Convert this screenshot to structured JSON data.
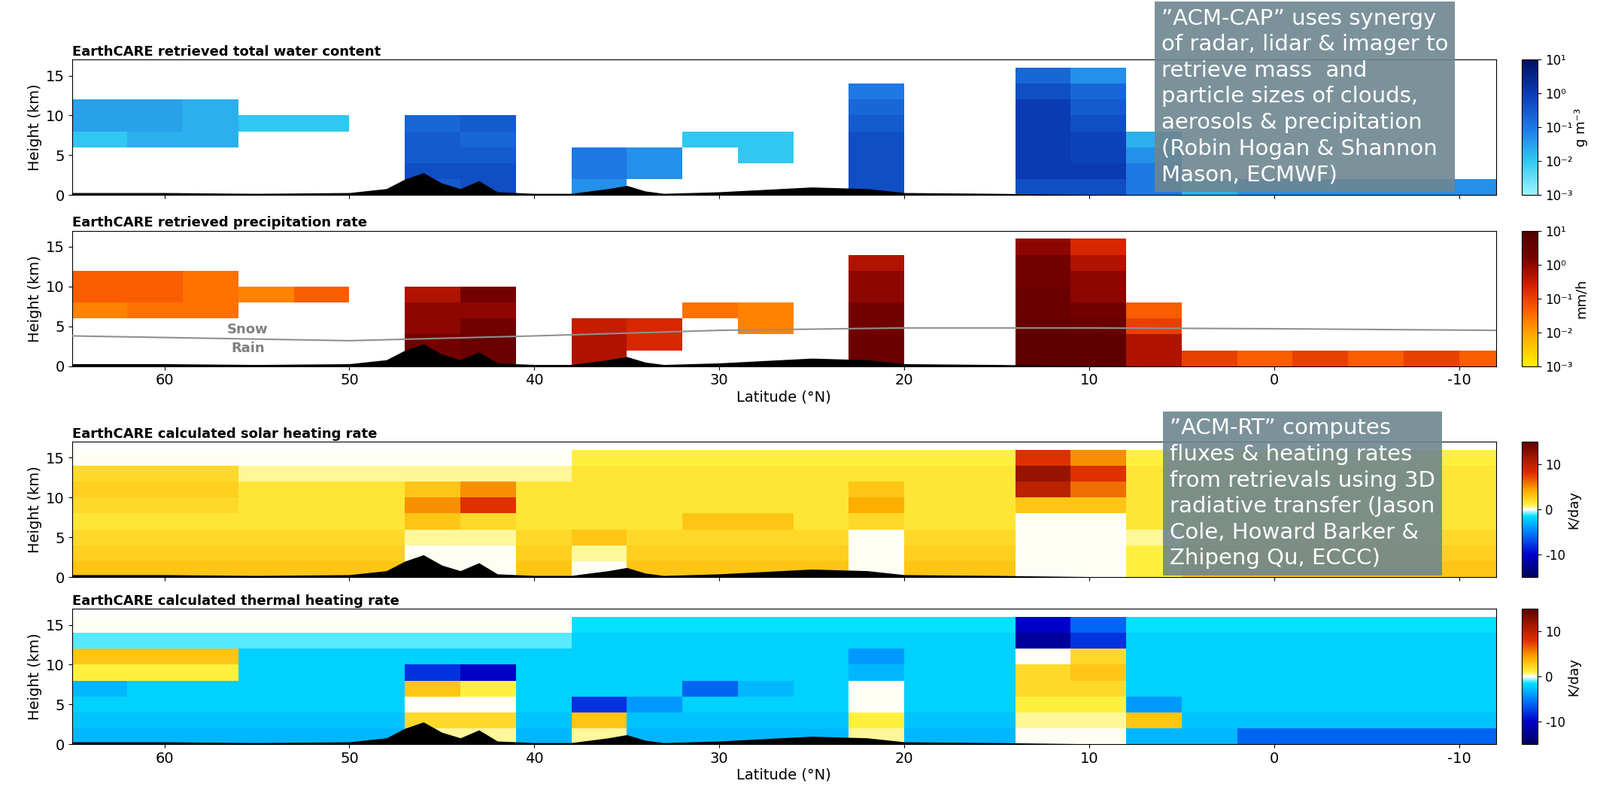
{
  "chart_data": [
    {
      "type": "heatmap",
      "title": "EarthCARE retrieved total water content",
      "ylabel": "Height (km)",
      "xlim": [
        65,
        -12
      ],
      "ylim": [
        0,
        17
      ],
      "xticks": [
        60,
        50,
        40,
        30,
        20,
        10,
        0,
        -10
      ],
      "yticks": [
        0,
        5,
        10,
        15
      ],
      "tick_labels": "y",
      "x_edges": [
        65,
        62,
        59,
        56,
        53,
        50,
        47,
        44,
        41,
        38,
        35,
        32,
        29,
        26,
        23,
        20,
        17,
        14,
        11,
        8,
        5,
        2,
        -1,
        -4,
        -7,
        -10,
        -13
      ],
      "y_edges": [
        0,
        2,
        4,
        6,
        8,
        10,
        12,
        14,
        16
      ],
      "cells": [
        [
          null,
          null,
          null,
          null,
          null,
          null,
          0.3,
          0.5,
          null,
          0.05,
          null,
          null,
          null,
          null,
          0.5,
          null,
          null,
          0.5,
          0.5,
          0.1,
          0.02,
          0.05,
          0.05,
          0.05,
          0.05,
          0.05
        ],
        [
          null,
          null,
          null,
          null,
          null,
          null,
          0.5,
          0.5,
          null,
          0.1,
          0.05,
          null,
          null,
          null,
          0.5,
          null,
          null,
          1,
          1,
          0.1,
          null,
          null,
          null,
          null,
          null,
          null
        ],
        [
          null,
          null,
          null,
          null,
          null,
          null,
          0.3,
          0.3,
          null,
          0.1,
          0.05,
          null,
          0.01,
          null,
          0.5,
          null,
          null,
          1,
          0.8,
          0.05,
          null,
          null,
          null,
          null,
          null,
          null
        ],
        [
          0.01,
          0.02,
          0.02,
          null,
          null,
          null,
          0.3,
          0.2,
          null,
          null,
          null,
          0.01,
          0.01,
          null,
          0.5,
          null,
          null,
          1,
          0.8,
          0.02,
          null,
          null,
          null,
          null,
          null,
          null
        ],
        [
          0.03,
          0.03,
          0.02,
          0.01,
          0.01,
          null,
          0.2,
          0.3,
          null,
          null,
          null,
          null,
          null,
          null,
          0.3,
          null,
          null,
          1,
          0.5,
          null,
          null,
          null,
          null,
          null,
          null,
          null
        ],
        [
          0.03,
          0.03,
          0.02,
          null,
          null,
          null,
          null,
          null,
          null,
          null,
          null,
          null,
          null,
          null,
          0.2,
          null,
          null,
          1,
          0.3,
          null,
          null,
          null,
          null,
          null,
          null,
          null
        ],
        [
          null,
          null,
          null,
          null,
          null,
          null,
          null,
          null,
          null,
          null,
          null,
          null,
          null,
          null,
          0.1,
          null,
          null,
          0.5,
          0.2,
          null,
          null,
          null,
          null,
          null,
          null,
          null
        ],
        [
          null,
          null,
          null,
          null,
          null,
          null,
          null,
          null,
          null,
          null,
          null,
          null,
          null,
          null,
          null,
          null,
          null,
          0.2,
          0.05,
          null,
          null,
          null,
          null,
          null,
          null,
          null
        ]
      ],
      "colorbar": {
        "range": [
          0.001,
          10
        ],
        "log": true,
        "label": "g m⁻³",
        "ticks": [
          {
            "value": 10,
            "label": "10¹"
          },
          {
            "value": 1,
            "label": "10⁰"
          },
          {
            "value": 0.1,
            "label": "10⁻¹"
          },
          {
            "value": 0.01,
            "label": "10⁻²"
          },
          {
            "value": 0.001,
            "label": "10⁻³"
          }
        ]
      },
      "annotation": "”ACM-CAP” uses synergy\nof radar, lidar & imager to\nretrieve mass  and\nparticle sizes of clouds,\naerosols & precipitation\n(Robin Hogan & Shannon\nMason, ECMWF)"
    },
    {
      "type": "heatmap",
      "title": "EarthCARE retrieved precipitation rate",
      "ylabel": "Height (km)",
      "xlabel": "Latitude (°N)",
      "xlim": [
        65,
        -12
      ],
      "ylim": [
        0,
        17
      ],
      "xticks": [
        60,
        50,
        40,
        30,
        20,
        10,
        0,
        -10
      ],
      "yticks": [
        0,
        5,
        10,
        15
      ],
      "x_edges": [
        65,
        62,
        59,
        56,
        53,
        50,
        47,
        44,
        41,
        38,
        35,
        32,
        29,
        26,
        23,
        20,
        17,
        14,
        11,
        8,
        5,
        2,
        -1,
        -4,
        -7,
        -10,
        -13
      ],
      "y_edges": [
        0,
        2,
        4,
        6,
        8,
        10,
        12,
        14,
        16
      ],
      "cells": [
        [
          null,
          null,
          null,
          null,
          null,
          null,
          2,
          3,
          null,
          0.5,
          null,
          null,
          null,
          null,
          3,
          null,
          null,
          5,
          5,
          0.5,
          0.1,
          0.05,
          0.1,
          0.05,
          0.1,
          0.05
        ],
        [
          null,
          null,
          null,
          null,
          null,
          null,
          2,
          3,
          null,
          0.5,
          0.2,
          null,
          null,
          null,
          3,
          null,
          null,
          5,
          5,
          0.5,
          null,
          null,
          null,
          null,
          null,
          null
        ],
        [
          null,
          null,
          null,
          null,
          null,
          null,
          1,
          2,
          null,
          0.3,
          0.2,
          null,
          0.02,
          null,
          2,
          null,
          null,
          4,
          3,
          0.1,
          null,
          null,
          null,
          null,
          null,
          null
        ],
        [
          0.02,
          0.03,
          0.03,
          null,
          null,
          null,
          1,
          1,
          null,
          null,
          null,
          0.03,
          0.02,
          null,
          2,
          null,
          null,
          3,
          2,
          0.05,
          null,
          null,
          null,
          null,
          null,
          null
        ],
        [
          0.05,
          0.05,
          0.03,
          0.02,
          0.05,
          null,
          0.5,
          2,
          null,
          null,
          null,
          null,
          null,
          null,
          1,
          null,
          null,
          3,
          1,
          null,
          null,
          null,
          null,
          null,
          null,
          null
        ],
        [
          0.05,
          0.05,
          0.03,
          null,
          null,
          null,
          null,
          null,
          null,
          null,
          null,
          null,
          null,
          null,
          1,
          null,
          null,
          2,
          1,
          null,
          null,
          null,
          null,
          null,
          null,
          null
        ],
        [
          null,
          null,
          null,
          null,
          null,
          null,
          null,
          null,
          null,
          null,
          null,
          null,
          null,
          null,
          0.5,
          null,
          null,
          2,
          0.5,
          null,
          null,
          null,
          null,
          null,
          null,
          null
        ],
        [
          null,
          null,
          null,
          null,
          null,
          null,
          null,
          null,
          null,
          null,
          null,
          null,
          null,
          null,
          null,
          null,
          null,
          1,
          0.2,
          null,
          null,
          null,
          null,
          null,
          null,
          null
        ]
      ],
      "colorbar": {
        "range": [
          0.001,
          10
        ],
        "log": true,
        "label": "mm/h",
        "ticks": [
          {
            "value": 10,
            "label": "10¹"
          },
          {
            "value": 1,
            "label": "10⁰"
          },
          {
            "value": 0.1,
            "label": "10⁻¹"
          },
          {
            "value": 0.01,
            "label": "10⁻²"
          },
          {
            "value": 0.001,
            "label": "10⁻³"
          }
        ]
      },
      "melting_level": {
        "lat": [
          65,
          50,
          40,
          30,
          20,
          10,
          0,
          -12
        ],
        "height": [
          3.8,
          3.2,
          3.8,
          4.5,
          4.8,
          4.8,
          4.7,
          4.5
        ],
        "labels": [
          "Snow",
          "Rain"
        ]
      }
    },
    {
      "type": "heatmap",
      "title": "EarthCARE calculated solar heating rate",
      "ylabel": "Height (km)",
      "xlim": [
        65,
        -12
      ],
      "ylim": [
        0,
        17
      ],
      "xticks": [
        60,
        50,
        40,
        30,
        20,
        10,
        0,
        -10
      ],
      "yticks": [
        0,
        5,
        10,
        15
      ],
      "tick_labels": "y",
      "x_edges": [
        65,
        62,
        59,
        56,
        53,
        50,
        47,
        44,
        41,
        38,
        35,
        32,
        29,
        26,
        23,
        20,
        17,
        14,
        11,
        8,
        5,
        2,
        -1,
        -4,
        -7,
        -10,
        -13
      ],
      "y_edges": [
        0,
        2,
        4,
        6,
        8,
        10,
        12,
        14,
        16
      ],
      "cells": [
        [
          3,
          3,
          3,
          3,
          3,
          3,
          0,
          0,
          3,
          0,
          3,
          3,
          3,
          3,
          0,
          3,
          3,
          0,
          0,
          1,
          3,
          3,
          3,
          3,
          3,
          3
        ],
        [
          2.5,
          2.5,
          2.5,
          2.5,
          2.5,
          2.5,
          0,
          0,
          2.5,
          0.5,
          2.5,
          2.5,
          2.5,
          2.5,
          0,
          2.5,
          2.5,
          0,
          0,
          1,
          2.5,
          2.5,
          2.5,
          2.5,
          2.5,
          2.5
        ],
        [
          2,
          2,
          2,
          2,
          2,
          2,
          0.5,
          0.5,
          2,
          3,
          2,
          2,
          2,
          2,
          0,
          2,
          2,
          0,
          0,
          0.5,
          2,
          2,
          2,
          2,
          2,
          2
        ],
        [
          1.5,
          1.5,
          1.5,
          1.5,
          1.5,
          1.5,
          3,
          2,
          1.5,
          1.5,
          1.5,
          3,
          3,
          1.5,
          2,
          1.5,
          1.5,
          0,
          0,
          1.5,
          1.5,
          1.5,
          1.5,
          1.5,
          1.5,
          1.5
        ],
        [
          2,
          2,
          2,
          1.5,
          1.5,
          1.5,
          5,
          8,
          1.5,
          1.5,
          1.5,
          1.5,
          1.5,
          1.5,
          4,
          1.5,
          1.5,
          3,
          3,
          1.5,
          1.5,
          1.5,
          1.5,
          1.5,
          1.5,
          1.5
        ],
        [
          2.5,
          2.5,
          2.5,
          1.5,
          1.5,
          1.5,
          3,
          5,
          1.5,
          1.5,
          1.5,
          1.5,
          1.5,
          1.5,
          3,
          1.5,
          1.5,
          10,
          6,
          1.5,
          1.5,
          1.5,
          1.5,
          1.5,
          1.5,
          1.5
        ],
        [
          2,
          2,
          2,
          0.5,
          0.5,
          0.5,
          0.5,
          0.5,
          0.5,
          1.5,
          1.5,
          1.5,
          1.5,
          1.5,
          1.5,
          1.5,
          1.5,
          12,
          8,
          1.5,
          1.5,
          1.5,
          1.5,
          1.5,
          1.5,
          1.5
        ],
        [
          0,
          0,
          0,
          0,
          0,
          0,
          0,
          0,
          0,
          1,
          1,
          1,
          1,
          1,
          1,
          1,
          1,
          8,
          5,
          1,
          1,
          1,
          1,
          1,
          1,
          1
        ]
      ],
      "colorbar": {
        "range": [
          -15,
          15
        ],
        "label": "K/day",
        "ticks": [
          -10,
          0,
          10
        ]
      },
      "annotation": "”ACM-RT” computes\nfluxes & heating rates\nfrom retrievals using 3D\nradiative transfer (Jason\nCole, Howard Barker &\nZhipeng Qu, ECCC)"
    },
    {
      "type": "heatmap",
      "title": "EarthCARE calculated thermal heating rate",
      "ylabel": "Height (km)",
      "xlabel": "Latitude (°N)",
      "xlim": [
        65,
        -12
      ],
      "ylim": [
        0,
        17
      ],
      "xticks": [
        60,
        50,
        40,
        30,
        20,
        10,
        0,
        -10
      ],
      "yticks": [
        0,
        5,
        10,
        15
      ],
      "x_edges": [
        65,
        62,
        59,
        56,
        53,
        50,
        47,
        44,
        41,
        38,
        35,
        32,
        29,
        26,
        23,
        20,
        17,
        14,
        11,
        8,
        5,
        2,
        -1,
        -4,
        -7,
        -10,
        -13
      ],
      "y_edges": [
        0,
        2,
        4,
        6,
        8,
        10,
        12,
        14,
        16
      ],
      "cells": [
        [
          -3,
          -3,
          -3,
          -3,
          -3,
          -3,
          0.5,
          0.5,
          -3,
          0.5,
          -3,
          -3,
          -3,
          -3,
          0.5,
          -3,
          -3,
          0,
          0,
          -3,
          -3,
          -6,
          -6,
          -6,
          -6,
          -6
        ],
        [
          -2.5,
          -2.5,
          -2.5,
          -2.5,
          -2.5,
          -2.5,
          2,
          2,
          -2.5,
          3,
          -2.5,
          -2.5,
          -2.5,
          -2.5,
          1,
          -2.5,
          -2.5,
          0.5,
          0.5,
          3,
          -2.5,
          -2.5,
          -2.5,
          -2.5,
          -2.5,
          -2.5
        ],
        [
          -2,
          -2,
          -2,
          -2,
          -2,
          -2,
          0,
          0,
          -2,
          -8,
          -4,
          -2,
          -2,
          -2,
          0,
          -2,
          -2,
          1,
          1,
          -4,
          -2,
          -2,
          -2,
          -2,
          -2,
          -2
        ],
        [
          -3,
          -2,
          -2,
          -2,
          -2,
          -2,
          3,
          1,
          -2,
          -2,
          -2,
          -6,
          -3,
          -2,
          0,
          -2,
          -2,
          2,
          2,
          -2,
          -2,
          -2,
          -2,
          -2,
          -2,
          -2
        ],
        [
          1,
          1,
          1,
          -2,
          -2,
          -2,
          -8,
          -10,
          -2,
          -2,
          -2,
          -2,
          -2,
          -2,
          -3,
          -2,
          -2,
          2,
          3,
          -2,
          -2,
          -2,
          -2,
          -2,
          -2,
          -2
        ],
        [
          3,
          3,
          3,
          -2,
          -2,
          -2,
          -2,
          -2,
          -2,
          -2,
          -2,
          -2,
          -2,
          -2,
          -4,
          -2,
          -2,
          0,
          2,
          -2,
          -2,
          -2,
          -2,
          -2,
          -2,
          -2
        ],
        [
          -1,
          -1,
          -1,
          -1,
          -1,
          -1,
          -1,
          -1,
          -1,
          -2,
          -2,
          -2,
          -2,
          -2,
          -2,
          -2,
          -2,
          -12,
          -8,
          -2,
          -2,
          -2,
          -2,
          -2,
          -2,
          -2
        ],
        [
          0,
          0,
          0,
          0,
          0,
          0,
          0,
          0,
          0,
          -1.5,
          -1.5,
          -1.5,
          -1.5,
          -1.5,
          -1.5,
          -1.5,
          -1.5,
          -10,
          -6,
          -1.5,
          -1.5,
          -1.5,
          -1.5,
          -1.5,
          -1.5,
          -1.5
        ]
      ],
      "colorbar": {
        "range": [
          -15,
          15
        ],
        "label": "K/day",
        "ticks": [
          -10,
          0,
          10
        ]
      }
    }
  ],
  "surface": {
    "lat": [
      65,
      60,
      55,
      50,
      48,
      47,
      46,
      45,
      44,
      43,
      42,
      41,
      40,
      38,
      36,
      35,
      34,
      33,
      30,
      25,
      22,
      20,
      15,
      10,
      5,
      0,
      -5,
      -12
    ],
    "height": [
      0.3,
      0.3,
      0.2,
      0.3,
      0.8,
      2,
      2.8,
      1.5,
      0.8,
      1.8,
      0.4,
      0.3,
      0.2,
      0.2,
      0.8,
      1.2,
      0.5,
      0.2,
      0.4,
      1.0,
      0.8,
      0.3,
      0.2,
      0.05,
      0,
      0,
      0,
      0
    ]
  }
}
